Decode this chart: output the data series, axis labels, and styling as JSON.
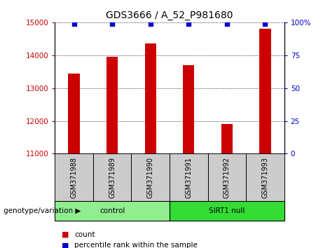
{
  "title": "GDS3666 / A_52_P981680",
  "samples": [
    "GSM371988",
    "GSM371989",
    "GSM371990",
    "GSM371991",
    "GSM371992",
    "GSM371993"
  ],
  "bar_values": [
    13450,
    13950,
    14350,
    13700,
    11900,
    14800
  ],
  "percentile_values": [
    99,
    99,
    99,
    99,
    99,
    99
  ],
  "ylim_left": [
    11000,
    15000
  ],
  "ylim_right": [
    0,
    100
  ],
  "yticks_left": [
    11000,
    12000,
    13000,
    14000,
    15000
  ],
  "yticks_right": [
    0,
    25,
    50,
    75,
    100
  ],
  "bar_color": "#cc0000",
  "percentile_color": "#0000cc",
  "control_label": "control",
  "sirt1_label": "SIRT1 null",
  "genotype_label": "genotype/variation",
  "legend_count": "count",
  "legend_percentile": "percentile rank within the sample",
  "n_control": 3,
  "n_sirt1": 3,
  "control_color": "#90ee90",
  "sirt1_color": "#33dd33",
  "sample_box_color": "#cccccc",
  "title_fontsize": 10,
  "tick_fontsize": 7.5,
  "sample_fontsize": 7,
  "label_fontsize": 7.5,
  "legend_fontsize": 7.5
}
